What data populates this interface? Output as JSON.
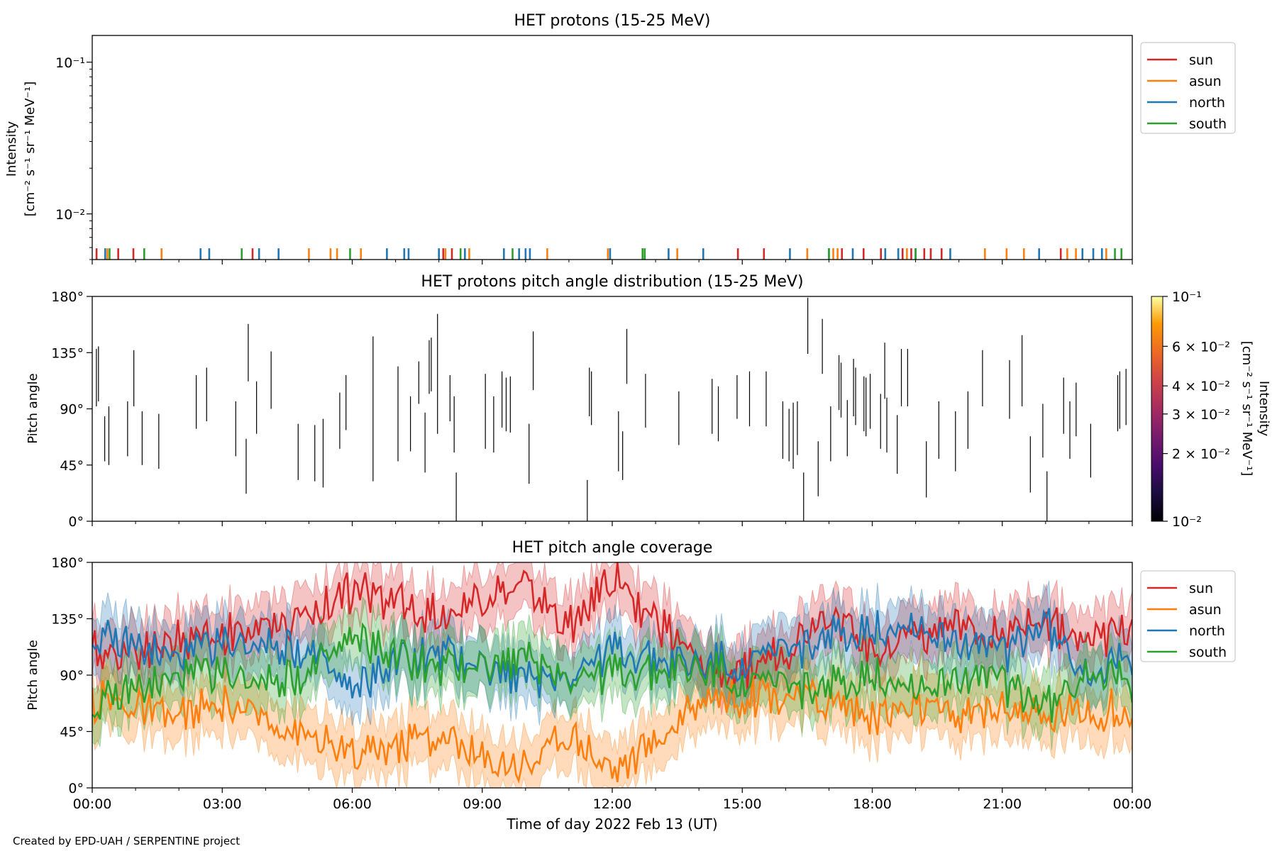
{
  "footer": "Created by EPD-UAH / SERPENTINE project",
  "colors": {
    "sun": "#d62728",
    "asun": "#ff7f0e",
    "north": "#1f77b4",
    "south": "#2ca02c",
    "pad_marks": "#000000"
  },
  "chart_data": [
    {
      "id": "intensity",
      "type": "line",
      "title": "HET protons (15-25 MeV)",
      "ylabel_line1": "Intensity",
      "ylabel_line2": "[cm⁻² s⁻¹ sr⁻¹ MeV⁻¹]",
      "yscale": "log",
      "ylim": [
        0.005,
        0.15
      ],
      "yticks": [
        "10⁻¹",
        "10⁻²"
      ],
      "xlim_hours": [
        0,
        24
      ],
      "legend": {
        "position": "outside-right",
        "entries": [
          "sun",
          "asun",
          "north",
          "south"
        ]
      },
      "series": [
        {
          "name": "sun",
          "color": "#d62728",
          "x": [
            0.1,
            0.6,
            0.95,
            3.7,
            8.1,
            8.3,
            12.7,
            14.9,
            15.5,
            17.3,
            17.8,
            18.2,
            18.7,
            18.9,
            19.2,
            19.35,
            19.6,
            22.35
          ],
          "y": [
            0.0055,
            0.0055,
            0.0055,
            0.0055,
            0.0055,
            0.0055,
            0.0055,
            0.0055,
            0.0055,
            0.0055,
            0.0055,
            0.0055,
            0.0055,
            0.0055,
            0.0055,
            0.0055,
            0.0055,
            0.0055
          ]
        },
        {
          "name": "asun",
          "color": "#ff7f0e",
          "x": [
            0.35,
            1.6,
            5.0,
            5.5,
            5.65,
            6.2,
            8.15,
            8.7,
            10.5,
            11.9,
            13.5,
            16.5,
            17.1,
            17.2,
            18.8,
            20.6,
            21.1,
            21.5,
            22.5,
            22.7,
            23.4
          ],
          "y": [
            0.0055,
            0.0055,
            0.0055,
            0.0055,
            0.0055,
            0.0055,
            0.0055,
            0.0055,
            0.0055,
            0.0055,
            0.0055,
            0.0055,
            0.0055,
            0.0055,
            0.0055,
            0.0055,
            0.0055,
            0.0055,
            0.0055,
            0.0055,
            0.0055
          ]
        },
        {
          "name": "north",
          "color": "#1f77b4",
          "x": [
            0.3,
            2.5,
            2.7,
            3.85,
            4.3,
            6.8,
            7.2,
            7.3,
            8.0,
            8.6,
            9.5,
            9.85,
            10.0,
            10.1,
            11.95,
            13.3,
            14.1,
            16.1,
            17.0,
            17.55,
            18.3,
            18.6,
            19.0,
            19.8,
            21.85,
            22.85,
            23.1,
            23.3
          ],
          "y": [
            0.0055,
            0.0055,
            0.0055,
            0.0055,
            0.0055,
            0.0055,
            0.0055,
            0.0055,
            0.0055,
            0.0055,
            0.0055,
            0.0055,
            0.0055,
            0.0055,
            0.0055,
            0.0055,
            0.0055,
            0.0055,
            0.0055,
            0.0055,
            0.0055,
            0.0055,
            0.0055,
            0.0055,
            0.0055,
            0.0055,
            0.0055,
            0.0055
          ]
        },
        {
          "name": "south",
          "color": "#2ca02c",
          "x": [
            0.4,
            1.2,
            3.45,
            5.95,
            8.5,
            9.7,
            12.7,
            12.75,
            17.0,
            19.0,
            23.6,
            23.75
          ],
          "y": [
            0.0055,
            0.0055,
            0.0055,
            0.0055,
            0.0055,
            0.0055,
            0.0055,
            0.0055,
            0.0055,
            0.0055,
            0.0055,
            0.0055
          ]
        }
      ]
    },
    {
      "id": "pad",
      "type": "heatmap",
      "title": "HET protons pitch angle distribution (15-25 MeV)",
      "ylabel": "Pitch angle",
      "ylim": [
        0,
        180
      ],
      "yticks": [
        "0°",
        "45°",
        "90°",
        "135°",
        "180°"
      ],
      "xlim_hours": [
        0,
        24
      ],
      "colorbar": {
        "label_line1": "Intensity",
        "label_line2": "[cm⁻² s⁻¹ sr⁻¹ MeV⁻¹]",
        "scale": "log",
        "range": [
          0.01,
          0.1
        ],
        "ticks": [
          {
            "value": 0.1,
            "label": "10⁻¹"
          },
          {
            "value": 0.06,
            "label": "6 × 10⁻²"
          },
          {
            "value": 0.04,
            "label": "4 × 10⁻²"
          },
          {
            "value": 0.03,
            "label": "3 × 10⁻²"
          },
          {
            "value": 0.02,
            "label": "2 × 10⁻²"
          },
          {
            "value": 0.01,
            "label": "10⁻²"
          }
        ]
      },
      "segments": [
        [
          0.1,
          92,
          138
        ],
        [
          0.15,
          96,
          140
        ],
        [
          0.3,
          48,
          84
        ],
        [
          0.4,
          45,
          92
        ],
        [
          0.85,
          52,
          96
        ],
        [
          1.0,
          92,
          137
        ],
        [
          1.2,
          45,
          88
        ],
        [
          1.6,
          42,
          86
        ],
        [
          2.5,
          74,
          117
        ],
        [
          2.75,
          80,
          123
        ],
        [
          3.45,
          52,
          96
        ],
        [
          3.7,
          22,
          66
        ],
        [
          3.75,
          112,
          158
        ],
        [
          3.95,
          70,
          112
        ],
        [
          4.3,
          90,
          136
        ],
        [
          4.95,
          33,
          78
        ],
        [
          5.35,
          32,
          77
        ],
        [
          5.55,
          27,
          82
        ],
        [
          5.95,
          58,
          103
        ],
        [
          6.1,
          73,
          117
        ],
        [
          6.75,
          32,
          148
        ],
        [
          7.35,
          48,
          124
        ],
        [
          7.65,
          56,
          100
        ],
        [
          7.85,
          94,
          128
        ],
        [
          8.0,
          39,
          87
        ],
        [
          8.1,
          102,
          145
        ],
        [
          8.15,
          104,
          147
        ],
        [
          8.3,
          70,
          166
        ],
        [
          8.6,
          80,
          117
        ],
        [
          8.7,
          55,
          100
        ],
        [
          8.75,
          0,
          39
        ],
        [
          9.45,
          58,
          118
        ],
        [
          9.65,
          55,
          100
        ],
        [
          9.85,
          75,
          120
        ],
        [
          9.95,
          72,
          115
        ],
        [
          10.05,
          71,
          116
        ],
        [
          10.5,
          30,
          78
        ],
        [
          10.6,
          105,
          152
        ],
        [
          11.9,
          0,
          33
        ],
        [
          11.95,
          84,
          123
        ],
        [
          12.0,
          77,
          120
        ],
        [
          12.65,
          40,
          88
        ],
        [
          12.75,
          33,
          72
        ],
        [
          12.85,
          110,
          154
        ],
        [
          13.3,
          75,
          118
        ],
        [
          14.1,
          61,
          104
        ],
        [
          14.9,
          70,
          114
        ],
        [
          15.05,
          64,
          108
        ],
        [
          15.5,
          82,
          117
        ],
        [
          15.8,
          76,
          120
        ],
        [
          16.2,
          76,
          120
        ],
        [
          16.6,
          50,
          96
        ],
        [
          16.75,
          48,
          90
        ],
        [
          16.85,
          42,
          95
        ],
        [
          16.95,
          53,
          96
        ],
        [
          17.1,
          0,
          39
        ],
        [
          17.2,
          134,
          179
        ],
        [
          17.45,
          20,
          64
        ],
        [
          17.55,
          118,
          162
        ],
        [
          17.75,
          48,
          92
        ],
        [
          17.95,
          89,
          133
        ],
        [
          18.0,
          83,
          127
        ],
        [
          18.15,
          52,
          97
        ],
        [
          18.3,
          84,
          130
        ],
        [
          18.35,
          77,
          123
        ],
        [
          18.55,
          72,
          116
        ],
        [
          18.6,
          68,
          115
        ],
        [
          18.7,
          74,
          118
        ],
        [
          18.95,
          58,
          102
        ],
        [
          19.05,
          98,
          143
        ],
        [
          19.1,
          55,
          99
        ],
        [
          19.35,
          38,
          85
        ],
        [
          19.45,
          92,
          138
        ],
        [
          19.6,
          92,
          138
        ],
        [
          20.05,
          19,
          64
        ],
        [
          20.35,
          50,
          96
        ],
        [
          20.75,
          40,
          88
        ],
        [
          21.05,
          58,
          104
        ],
        [
          21.4,
          92,
          137
        ],
        [
          22.05,
          82,
          129
        ],
        [
          22.35,
          92,
          149
        ],
        [
          22.55,
          23,
          68
        ],
        [
          22.85,
          51,
          94
        ],
        [
          22.95,
          0,
          40
        ],
        [
          23.35,
          70,
          115
        ],
        [
          23.5,
          50,
          96
        ],
        [
          23.65,
          68,
          111
        ],
        [
          24.0,
          35,
          78
        ],
        [
          24.65,
          72,
          117
        ],
        [
          24.7,
          74,
          120
        ],
        [
          24.85,
          77,
          122
        ]
      ]
    },
    {
      "id": "coverage",
      "type": "area",
      "title": "HET pitch angle coverage",
      "ylabel": "Pitch angle",
      "xlabel": "Time of day 2022 Feb 13 (UT)",
      "ylim": [
        0,
        180
      ],
      "yticks": [
        "0°",
        "45°",
        "90°",
        "135°",
        "180°"
      ],
      "xticks": [
        "00:00",
        "03:00",
        "06:00",
        "09:00",
        "12:00",
        "15:00",
        "18:00",
        "21:00",
        "00:00"
      ],
      "xlim_hours": [
        0,
        24
      ],
      "legend": {
        "position": "outside-right",
        "entries": [
          "sun",
          "asun",
          "north",
          "south"
        ]
      },
      "band_halfwidth_deg": 22,
      "series": [
        {
          "name": "sun",
          "color": "#d62728",
          "x": [
            0,
            1,
            2,
            3,
            4,
            5,
            6,
            7,
            8,
            9,
            10,
            11,
            12,
            13,
            14,
            15,
            16,
            17,
            18,
            19,
            20,
            21,
            22,
            23,
            24
          ],
          "y": [
            108,
            112,
            118,
            122,
            128,
            140,
            158,
            150,
            135,
            155,
            160,
            128,
            168,
            135,
            98,
            92,
            108,
            145,
            108,
            125,
            128,
            118,
            135,
            112,
            130
          ]
        },
        {
          "name": "asun",
          "color": "#ff7f0e",
          "x": [
            0,
            1,
            2,
            3,
            4,
            5,
            6,
            7,
            8,
            9,
            10,
            11,
            12,
            13,
            14,
            15,
            16,
            17,
            18,
            19,
            20,
            21,
            22,
            23,
            24
          ],
          "y": [
            70,
            62,
            58,
            65,
            55,
            40,
            25,
            35,
            42,
            22,
            18,
            45,
            15,
            38,
            70,
            75,
            75,
            70,
            58,
            62,
            60,
            65,
            55,
            65,
            58
          ]
        },
        {
          "name": "north",
          "color": "#1f77b4",
          "x": [
            0,
            1,
            2,
            3,
            4,
            5,
            6,
            7,
            8,
            9,
            10,
            11,
            12,
            13,
            14,
            15,
            16,
            17,
            18,
            19,
            20,
            21,
            22,
            23,
            24
          ],
          "y": [
            118,
            112,
            105,
            112,
            118,
            110,
            75,
            100,
            108,
            100,
            88,
            92,
            110,
            102,
            98,
            100,
            110,
            120,
            128,
            130,
            118,
            108,
            132,
            90,
            100
          ]
        },
        {
          "name": "south",
          "color": "#2ca02c",
          "x": [
            0,
            1,
            2,
            3,
            4,
            5,
            6,
            7,
            8,
            9,
            10,
            11,
            12,
            13,
            14,
            15,
            16,
            17,
            18,
            19,
            20,
            21,
            22,
            23,
            24
          ],
          "y": [
            62,
            78,
            90,
            88,
            88,
            92,
            118,
            105,
            95,
            100,
            105,
            90,
            92,
            92,
            95,
            86,
            82,
            80,
            92,
            80,
            90,
            85,
            65,
            95,
            78
          ]
        }
      ]
    }
  ]
}
